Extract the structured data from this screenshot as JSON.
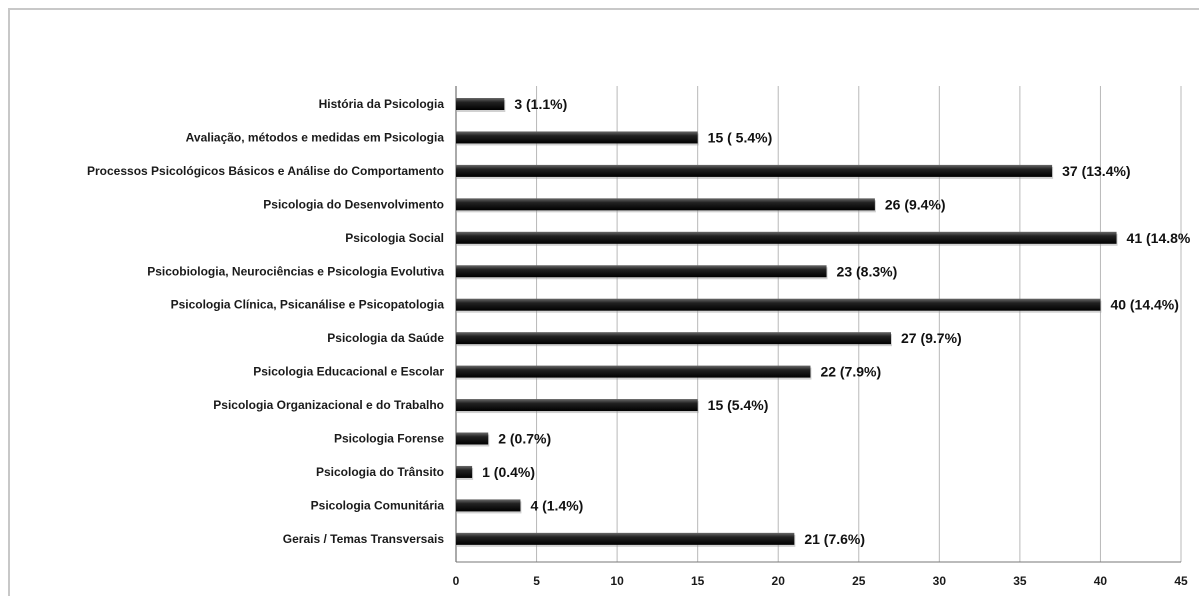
{
  "chart_data": {
    "type": "bar",
    "orientation": "horizontal",
    "categories": [
      "História da Psicologia",
      "Avaliação, métodos e medidas em Psicologia",
      "Processos Psicológicos Básicos e Análise do Comportamento",
      "Psicologia do Desenvolvimento",
      "Psicologia Social",
      "Psicobiologia, Neurociências e Psicologia Evolutiva",
      "Psicologia Clínica, Psicanálise e Psicopatologia",
      "Psicologia da Saúde",
      "Psicologia Educacional e Escolar",
      "Psicologia Organizacional e do Trabalho",
      "Psicologia Forense",
      "Psicologia do Trânsito",
      "Psicologia Comunitária",
      "Gerais / Temas Transversais"
    ],
    "values": [
      3,
      15,
      37,
      26,
      41,
      23,
      40,
      27,
      22,
      15,
      2,
      1,
      4,
      21
    ],
    "data_labels": [
      "3 (1.1%)",
      "15 ( 5.4%)",
      "37 (13.4%)",
      "26 (9.4%)",
      "41 (14.8%",
      "23 (8.3%)",
      "40 (14.4%)",
      "27 (9.7%)",
      "22 (7.9%)",
      "15 (5.4%)",
      "2 (0.7%)",
      "1 (0.4%)",
      "4 (1.4%)",
      "21 (7.6%)"
    ],
    "xlim": [
      0,
      45
    ],
    "xticks": [
      "0",
      "5",
      "10",
      "15",
      "20",
      "25",
      "30",
      "35",
      "40",
      "45"
    ],
    "grid": true,
    "bar_color": "#111111",
    "title": "",
    "xlabel": "",
    "ylabel": ""
  }
}
